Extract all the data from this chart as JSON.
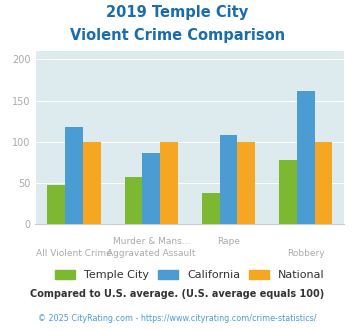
{
  "title_line1": "2019 Temple City",
  "title_line2": "Violent Crime Comparison",
  "series": {
    "Temple City": [
      48,
      57,
      38,
      78
    ],
    "California": [
      118,
      86,
      108,
      162
    ],
    "National": [
      100,
      100,
      100,
      100
    ]
  },
  "colors": {
    "Temple City": "#7db832",
    "California": "#4b9cd3",
    "National": "#f5a623"
  },
  "ylim": [
    0,
    210
  ],
  "yticks": [
    0,
    50,
    100,
    150,
    200
  ],
  "plot_bg": "#ddeaee",
  "fig_bg": "#ffffff",
  "title_color": "#1a6dad",
  "footer_text": "Compared to U.S. average. (U.S. average equals 100)",
  "footer_color": "#333333",
  "credit_text": "© 2025 CityRating.com - https://www.cityrating.com/crime-statistics/",
  "credit_color": "#4b9cd3",
  "legend_labels": [
    "Temple City",
    "California",
    "National"
  ],
  "legend_text_color": "#333333",
  "grid_color": "#ffffff",
  "tick_color": "#aaaaaa",
  "top_xlabels": [
    "",
    "Murder & Mans...",
    "",
    "Rape",
    ""
  ],
  "bottom_xlabels": [
    "All Violent Crime",
    "Aggravated Assault",
    "",
    "Robbery",
    ""
  ]
}
